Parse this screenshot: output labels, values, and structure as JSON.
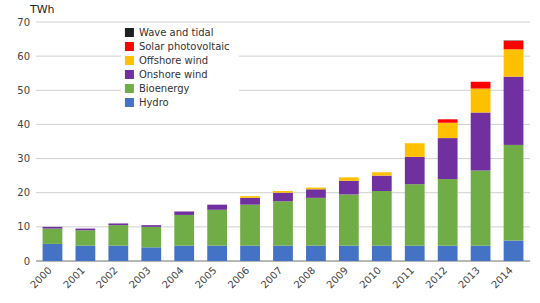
{
  "chart_data": {
    "type": "bar",
    "stacked": true,
    "ylabel": "TWh",
    "categories": [
      "2000",
      "2001",
      "2002",
      "2003",
      "2004",
      "2005",
      "2006",
      "2007",
      "2008",
      "2009",
      "2010",
      "2011",
      "2012",
      "2013",
      "2014"
    ],
    "series": [
      {
        "name": "Hydro",
        "color": "#4472C4",
        "values": [
          5.0,
          4.5,
          4.5,
          4.0,
          4.5,
          4.5,
          4.5,
          4.5,
          4.5,
          4.5,
          4.5,
          4.5,
          4.5,
          4.5,
          6.0
        ]
      },
      {
        "name": "Bioenergy",
        "color": "#70AD47",
        "values": [
          4.5,
          4.5,
          6.0,
          6.0,
          9.0,
          10.5,
          12.0,
          13.0,
          14.0,
          15.0,
          16.0,
          18.0,
          19.5,
          22.0,
          28.0
        ]
      },
      {
        "name": "Onshore wind",
        "color": "#7030A0",
        "values": [
          0.5,
          0.5,
          0.5,
          0.5,
          1.0,
          1.5,
          2.0,
          2.5,
          2.5,
          4.0,
          4.5,
          8.0,
          12.0,
          17.0,
          20.0
        ]
      },
      {
        "name": "Offshore wind",
        "color": "#FFC000",
        "values": [
          0.0,
          0.0,
          0.0,
          0.0,
          0.0,
          0.0,
          0.5,
          0.5,
          0.5,
          1.0,
          1.0,
          4.0,
          4.5,
          7.0,
          8.0
        ]
      },
      {
        "name": "Solar photovoltaic",
        "color": "#FF0000",
        "values": [
          0.0,
          0.0,
          0.0,
          0.0,
          0.0,
          0.0,
          0.0,
          0.0,
          0.0,
          0.0,
          0.0,
          0.0,
          1.0,
          2.0,
          2.5
        ]
      },
      {
        "name": "Wave and tidal",
        "color": "#1F1F1F",
        "values": [
          0.0,
          0.0,
          0.0,
          0.0,
          0.0,
          0.0,
          0.0,
          0.0,
          0.0,
          0.0,
          0.0,
          0.0,
          0.0,
          0.0,
          0.1
        ]
      }
    ],
    "ylim": [
      0,
      70
    ],
    "yticks": [
      0,
      10,
      20,
      30,
      40,
      50,
      60,
      70
    ],
    "grid": true,
    "legend": "upper left"
  }
}
